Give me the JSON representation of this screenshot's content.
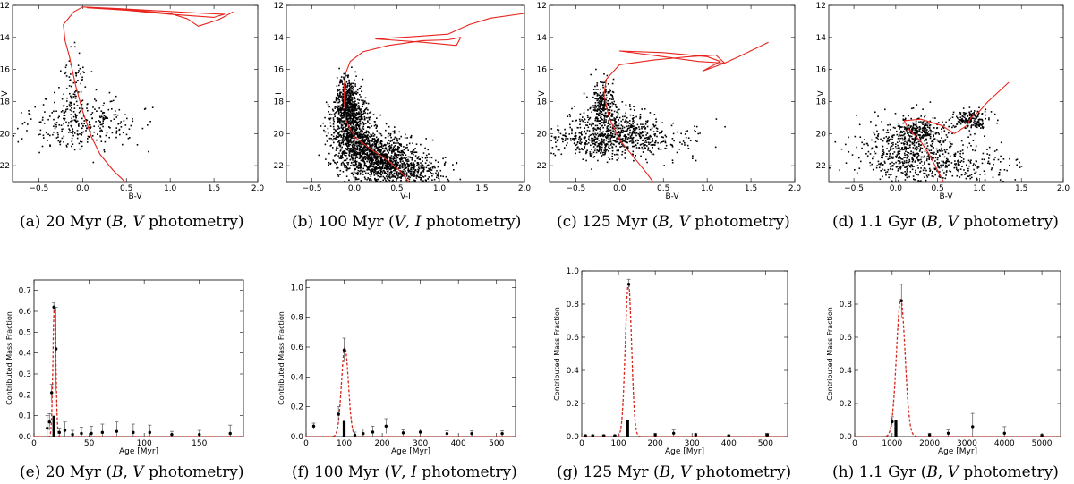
{
  "colors": {
    "isochrone": "#e8231c",
    "stars": "#000000",
    "fit": "#d6241a",
    "bars": "#000000",
    "axes": "#000000"
  },
  "chart_data": [
    {
      "id": "a",
      "type": "scatter",
      "caption": {
        "tag": "(a)",
        "age": "20 Myr",
        "band1": "B",
        "band2": "V",
        "suffix": "photometry"
      },
      "xlabel": "B-V",
      "ylabel": "V",
      "xlim": [
        -0.8,
        2.0
      ],
      "ylim": [
        23,
        12
      ],
      "y_inverted": true,
      "xticks": [
        -0.5,
        0.0,
        0.5,
        1.0,
        1.5,
        2.0
      ],
      "xtick_labels": [
        "−0.5",
        "0.0",
        "0.5",
        "1.0",
        "1.5",
        "2.0"
      ],
      "yticks": [
        12,
        14,
        16,
        18,
        20,
        22
      ],
      "stars": {
        "count": 380,
        "seed": 11,
        "clouds": [
          {
            "frac": 0.55,
            "cx": 0.05,
            "cy": 19.3,
            "sx": 0.3,
            "sy": 0.9
          },
          {
            "frac": 0.25,
            "cx": -0.2,
            "cy": 19.6,
            "sx": 0.35,
            "sy": 0.6
          },
          {
            "frac": 0.2,
            "cx": -0.1,
            "cy": 17.0,
            "sx": 0.07,
            "sy": 1.2
          }
        ]
      },
      "isochrone": [
        [
          0.52,
          23.2
        ],
        [
          0.35,
          22.3
        ],
        [
          0.2,
          21.3
        ],
        [
          0.1,
          20.2
        ],
        [
          0.0,
          18.6
        ],
        [
          -0.08,
          17.0
        ],
        [
          -0.15,
          15.2
        ],
        [
          -0.2,
          14.2
        ],
        [
          -0.22,
          13.2
        ],
        [
          -0.1,
          12.4
        ],
        [
          0.0,
          12.1
        ],
        [
          0.4,
          12.2
        ],
        [
          0.9,
          12.35
        ],
        [
          1.4,
          12.5
        ],
        [
          1.62,
          12.55
        ],
        [
          1.5,
          12.75
        ],
        [
          1.0,
          12.55
        ],
        [
          0.5,
          12.3
        ],
        [
          0.05,
          12.15
        ],
        [
          0.5,
          12.25
        ],
        [
          1.0,
          12.5
        ],
        [
          1.2,
          12.85
        ],
        [
          1.32,
          13.3
        ],
        [
          1.55,
          12.9
        ],
        [
          1.72,
          12.4
        ]
      ]
    },
    {
      "id": "b",
      "type": "scatter",
      "caption": {
        "tag": "(b)",
        "age": "100 Myr",
        "band1": "V",
        "band2": "I",
        "suffix": "photometry"
      },
      "xlabel": "V-I",
      "ylabel": "I",
      "xlim": [
        -0.8,
        2.0
      ],
      "ylim": [
        23,
        12
      ],
      "y_inverted": true,
      "xticks": [
        -0.5,
        0.0,
        0.5,
        1.0,
        1.5,
        2.0
      ],
      "xtick_labels": [
        "−0.5",
        "0.0",
        "0.5",
        "1.0",
        "1.5",
        "2.0"
      ],
      "yticks": [
        12,
        14,
        16,
        18,
        20,
        22
      ],
      "stars": {
        "count": 2600,
        "seed": 23,
        "clouds": [
          {
            "frac": 0.3,
            "cx": -0.05,
            "cy": 19.6,
            "sx": 0.12,
            "sy": 1.1
          },
          {
            "frac": 0.35,
            "cx": 0.25,
            "cy": 21.3,
            "sx": 0.22,
            "sy": 0.7
          },
          {
            "frac": 0.2,
            "cx": 0.55,
            "cy": 22.3,
            "sx": 0.25,
            "sy": 0.5
          },
          {
            "frac": 0.15,
            "cx": -0.1,
            "cy": 18.0,
            "sx": 0.06,
            "sy": 0.8
          }
        ]
      },
      "isochrone": [
        [
          0.68,
          23.3
        ],
        [
          0.55,
          22.4
        ],
        [
          0.4,
          21.7
        ],
        [
          0.2,
          21.0
        ],
        [
          0.0,
          20.2
        ],
        [
          -0.1,
          19.2
        ],
        [
          -0.12,
          18.0
        ],
        [
          -0.12,
          17.0
        ],
        [
          -0.1,
          16.2
        ],
        [
          -0.05,
          15.5
        ],
        [
          0.1,
          14.9
        ],
        [
          0.4,
          14.5
        ],
        [
          0.8,
          14.2
        ],
        [
          1.1,
          14.15
        ],
        [
          1.25,
          14.0
        ],
        [
          1.2,
          14.5
        ],
        [
          0.8,
          14.3
        ],
        [
          0.4,
          14.15
        ],
        [
          0.25,
          14.1
        ],
        [
          0.7,
          13.95
        ],
        [
          1.1,
          13.8
        ],
        [
          1.35,
          13.2
        ],
        [
          1.6,
          12.8
        ],
        [
          2.0,
          12.5
        ]
      ]
    },
    {
      "id": "c",
      "type": "scatter",
      "caption": {
        "tag": "(c)",
        "age": "125 Myr",
        "band1": "B",
        "band2": "V",
        "suffix": "photometry"
      },
      "xlabel": "B-V",
      "ylabel": "V",
      "xlim": [
        -0.8,
        2.0
      ],
      "ylim": [
        23,
        12
      ],
      "y_inverted": true,
      "xticks": [
        -0.5,
        0.0,
        0.5,
        1.0,
        1.5,
        2.0
      ],
      "xtick_labels": [
        "−0.5",
        "0.0",
        "0.5",
        "1.0",
        "1.5",
        "2.0"
      ],
      "yticks": [
        12,
        14,
        16,
        18,
        20,
        22
      ],
      "stars": {
        "count": 1100,
        "seed": 37,
        "clouds": [
          {
            "frac": 0.4,
            "cx": -0.1,
            "cy": 19.8,
            "sx": 0.22,
            "sy": 0.8
          },
          {
            "frac": 0.2,
            "cx": -0.2,
            "cy": 18.0,
            "sx": 0.07,
            "sy": 0.7
          },
          {
            "frac": 0.25,
            "cx": 0.2,
            "cy": 20.3,
            "sx": 0.35,
            "sy": 0.55
          },
          {
            "frac": 0.15,
            "cx": -0.4,
            "cy": 20.5,
            "sx": 0.25,
            "sy": 0.5
          }
        ]
      },
      "isochrone": [
        [
          0.42,
          23.3
        ],
        [
          0.3,
          22.4
        ],
        [
          0.15,
          21.4
        ],
        [
          0.0,
          20.4
        ],
        [
          -0.12,
          19.0
        ],
        [
          -0.18,
          17.6
        ],
        [
          -0.15,
          16.6
        ],
        [
          0.0,
          15.7
        ],
        [
          0.4,
          15.4
        ],
        [
          0.8,
          15.2
        ],
        [
          1.1,
          15.1
        ],
        [
          1.2,
          15.6
        ],
        [
          0.9,
          15.5
        ],
        [
          0.5,
          15.2
        ],
        [
          0.0,
          14.85
        ],
        [
          0.5,
          14.95
        ],
        [
          1.0,
          15.2
        ],
        [
          1.15,
          15.5
        ],
        [
          0.95,
          16.1
        ],
        [
          1.2,
          15.6
        ],
        [
          1.4,
          15.1
        ],
        [
          1.7,
          14.3
        ]
      ]
    },
    {
      "id": "d",
      "type": "scatter",
      "caption": {
        "tag": "(d)",
        "age": "1.1 Gyr",
        "band1": "B",
        "band2": "V",
        "suffix": "photometry"
      },
      "xlabel": "B-V",
      "ylabel": "V",
      "xlim": [
        -0.8,
        2.0
      ],
      "ylim": [
        23,
        12
      ],
      "y_inverted": true,
      "xticks": [
        -0.5,
        0.0,
        0.5,
        1.0,
        1.5,
        2.0
      ],
      "xtick_labels": [
        "−0.5",
        "0.0",
        "0.5",
        "1.0",
        "1.5",
        "2.0"
      ],
      "yticks": [
        12,
        14,
        16,
        18,
        20,
        22
      ],
      "stars": {
        "count": 1150,
        "seed": 53,
        "clouds": [
          {
            "frac": 0.45,
            "cx": 0.2,
            "cy": 21.0,
            "sx": 0.35,
            "sy": 1.0
          },
          {
            "frac": 0.2,
            "cx": 0.25,
            "cy": 19.8,
            "sx": 0.15,
            "sy": 0.4
          },
          {
            "frac": 0.2,
            "cx": 0.6,
            "cy": 22.0,
            "sx": 0.4,
            "sy": 0.6
          },
          {
            "frac": 0.15,
            "cx": 0.9,
            "cy": 19.1,
            "sx": 0.1,
            "sy": 0.3
          }
        ]
      },
      "isochrone": [
        [
          0.6,
          23.3
        ],
        [
          0.5,
          22.3
        ],
        [
          0.4,
          21.3
        ],
        [
          0.3,
          20.5
        ],
        [
          0.15,
          19.7
        ],
        [
          0.1,
          19.2
        ],
        [
          0.3,
          19.1
        ],
        [
          0.55,
          19.5
        ],
        [
          0.7,
          20.0
        ],
        [
          0.85,
          19.5
        ],
        [
          0.9,
          19.0
        ],
        [
          1.0,
          18.6
        ],
        [
          1.1,
          18.0
        ],
        [
          1.35,
          16.8
        ]
      ]
    },
    {
      "id": "e",
      "type": "bar",
      "caption": {
        "tag": "(e)",
        "age": "20 Myr",
        "band1": "B",
        "band2": "V",
        "suffix": "photometry"
      },
      "xlabel": "Age [Myr]",
      "ylabel": "Contributed Mass Fraction",
      "xlim": [
        0,
        190
      ],
      "ylim": [
        0,
        0.75
      ],
      "xticks": [
        0,
        50,
        100,
        150
      ],
      "xtick_labels": [
        "0",
        "50",
        "100",
        "150"
      ],
      "yticks": [
        0.0,
        0.1,
        0.2,
        0.3,
        0.4,
        0.5,
        0.6,
        0.7
      ],
      "ytick_labels": [
        "0.0",
        "0.1",
        "0.2",
        "0.3",
        "0.4",
        "0.5",
        "0.6",
        "0.7"
      ],
      "bars": [
        {
          "x": 18,
          "value": 0.1
        }
      ],
      "points": [
        {
          "x": 12,
          "value": 0.04,
          "err": 0.06
        },
        {
          "x": 14,
          "value": 0.07,
          "err": 0.04
        },
        {
          "x": 16,
          "value": 0.21,
          "err": 0.04
        },
        {
          "x": 18,
          "value": 0.62,
          "err": 0.02
        },
        {
          "x": 20,
          "value": 0.42,
          "err": 0.2
        },
        {
          "x": 23,
          "value": 0.02,
          "err": 0.02
        },
        {
          "x": 28,
          "value": 0.03,
          "err": 0.04
        },
        {
          "x": 35,
          "value": 0.01,
          "err": 0.02
        },
        {
          "x": 43,
          "value": 0.015,
          "err": 0.03
        },
        {
          "x": 52,
          "value": 0.015,
          "err": 0.035
        },
        {
          "x": 62,
          "value": 0.02,
          "err": 0.04
        },
        {
          "x": 75,
          "value": 0.025,
          "err": 0.045
        },
        {
          "x": 90,
          "value": 0.02,
          "err": 0.04
        },
        {
          "x": 105,
          "value": 0.02,
          "err": 0.035
        },
        {
          "x": 125,
          "value": 0.01,
          "err": 0.015
        },
        {
          "x": 150,
          "value": 0.01,
          "err": 0.02
        },
        {
          "x": 178,
          "value": 0.015,
          "err": 0.04
        }
      ],
      "fit": {
        "type": "gaussian",
        "mu": 18.5,
        "sigma": 1.3,
        "amp": 0.63
      }
    },
    {
      "id": "f",
      "type": "bar",
      "caption": {
        "tag": "(f)",
        "age": "100 Myr",
        "band1": "V",
        "band2": "I",
        "suffix": "photometry"
      },
      "xlabel": "Age [Myr]",
      "ylabel": "Contributed Mass Fraction",
      "xlim": [
        0,
        550
      ],
      "ylim": [
        0,
        1.05
      ],
      "xticks": [
        0,
        100,
        200,
        300,
        400,
        500
      ],
      "xtick_labels": [
        "0",
        "100",
        "200",
        "300",
        "400",
        "500"
      ],
      "yticks": [
        0.0,
        0.2,
        0.4,
        0.6,
        0.8,
        1.0
      ],
      "ytick_labels": [
        "0.0",
        "0.2",
        "0.4",
        "0.6",
        "0.8",
        "1.0"
      ],
      "bars": [
        {
          "x": 100,
          "value": 0.105
        }
      ],
      "points": [
        {
          "x": 20,
          "value": 0.07,
          "err": 0.02
        },
        {
          "x": 85,
          "value": 0.15,
          "err": 0.05
        },
        {
          "x": 100,
          "value": 0.58,
          "err": 0.08
        },
        {
          "x": 128,
          "value": 0.01,
          "err": 0.02
        },
        {
          "x": 150,
          "value": 0.02,
          "err": 0.03
        },
        {
          "x": 175,
          "value": 0.03,
          "err": 0.04
        },
        {
          "x": 210,
          "value": 0.07,
          "err": 0.05
        },
        {
          "x": 255,
          "value": 0.025,
          "err": 0.02
        },
        {
          "x": 300,
          "value": 0.03,
          "err": 0.02
        },
        {
          "x": 370,
          "value": 0.02,
          "err": 0.02
        },
        {
          "x": 435,
          "value": 0.02,
          "err": 0.02
        },
        {
          "x": 515,
          "value": 0.02,
          "err": 0.02
        }
      ],
      "fit": {
        "type": "gaussian",
        "mu": 102,
        "sigma": 9,
        "amp": 0.6
      }
    },
    {
      "id": "g",
      "type": "bar",
      "caption": {
        "tag": "(g)",
        "age": "125 Myr",
        "band1": "B",
        "band2": "V",
        "suffix": "photometry"
      },
      "xlabel": "Age [Myr]",
      "ylabel": "Contributed Mass Fraction",
      "xlim": [
        0,
        560
      ],
      "ylim": [
        0,
        1.0
      ],
      "xticks": [
        0,
        100,
        200,
        300,
        400,
        500
      ],
      "xtick_labels": [
        "0",
        "100",
        "200",
        "300",
        "400",
        "500"
      ],
      "yticks": [
        0.0,
        0.2,
        0.4,
        0.6,
        0.8,
        1.0
      ],
      "ytick_labels": [
        "0.0",
        "0.2",
        "0.4",
        "0.6",
        "0.8",
        "1.0"
      ],
      "bars": [
        {
          "x": 125,
          "value": 0.1
        }
      ],
      "points": [
        {
          "x": 10,
          "value": 0.005,
          "err": 0.005
        },
        {
          "x": 30,
          "value": 0.005,
          "err": 0.005
        },
        {
          "x": 60,
          "value": 0.005,
          "err": 0.005
        },
        {
          "x": 90,
          "value": 0.005,
          "err": 0.005
        },
        {
          "x": 128,
          "value": 0.92,
          "err": 0.03
        },
        {
          "x": 200,
          "value": 0.01,
          "err": 0.01
        },
        {
          "x": 250,
          "value": 0.02,
          "err": 0.02
        },
        {
          "x": 310,
          "value": 0.01,
          "err": 0.01
        },
        {
          "x": 400,
          "value": 0.005,
          "err": 0.005
        },
        {
          "x": 505,
          "value": 0.01,
          "err": 0.01
        }
      ],
      "fit": {
        "type": "gaussian",
        "mu": 127,
        "sigma": 8.5,
        "amp": 0.93
      }
    },
    {
      "id": "h",
      "type": "bar",
      "caption": {
        "tag": "(h)",
        "age": "1.1 Gyr",
        "band1": "B",
        "band2": "V",
        "suffix": "photometry"
      },
      "xlabel": "Age [Myr]",
      "ylabel": "Contributed Mass Fraction",
      "xlim": [
        0,
        5500
      ],
      "ylim": [
        0,
        1.0
      ],
      "xticks": [
        0,
        1000,
        2000,
        3000,
        4000,
        5000
      ],
      "xtick_labels": [
        "0",
        "1000",
        "2000",
        "3000",
        "4000",
        "5000"
      ],
      "yticks": [
        0.0,
        0.2,
        0.4,
        0.6,
        0.8
      ],
      "ytick_labels": [
        "0.0",
        "0.2",
        "0.4",
        "0.6",
        "0.8"
      ],
      "bars": [
        {
          "x": 1100,
          "value": 0.1
        }
      ],
      "points": [
        {
          "x": 1000,
          "value": 0.09,
          "err": 0.03
        },
        {
          "x": 1250,
          "value": 0.82,
          "err": 0.1
        },
        {
          "x": 2000,
          "value": 0.01,
          "err": 0.01
        },
        {
          "x": 2500,
          "value": 0.02,
          "err": 0.02
        },
        {
          "x": 3150,
          "value": 0.06,
          "err": 0.08
        },
        {
          "x": 4000,
          "value": 0.02,
          "err": 0.04
        },
        {
          "x": 5000,
          "value": 0.005,
          "err": 0.01
        }
      ],
      "fit": {
        "type": "gaussian",
        "mu": 1230,
        "sigma": 115,
        "amp": 0.83
      }
    }
  ]
}
